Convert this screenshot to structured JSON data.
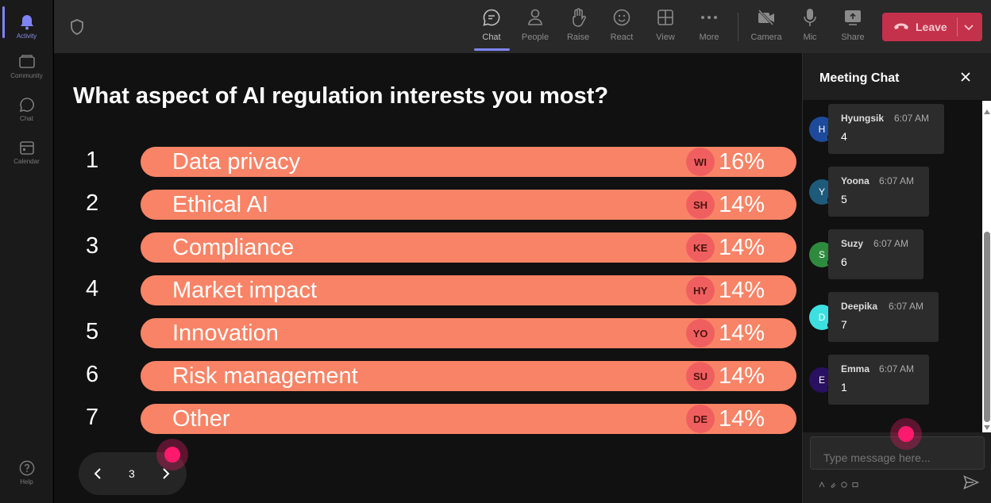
{
  "rail": {
    "items": [
      {
        "label": "Activity",
        "icon": "bell-icon"
      },
      {
        "label": "Community",
        "icon": "community-icon"
      },
      {
        "label": "Chat",
        "icon": "chat-icon"
      },
      {
        "label": "Calendar",
        "icon": "calendar-icon"
      }
    ],
    "help": {
      "label": "Help",
      "icon": "help-icon"
    }
  },
  "toolbar": {
    "buttons": [
      {
        "label": "Chat",
        "icon": "chat-icon"
      },
      {
        "label": "People",
        "icon": "people-icon"
      },
      {
        "label": "Raise",
        "icon": "hand-icon"
      },
      {
        "label": "React",
        "icon": "smiley-icon"
      },
      {
        "label": "View",
        "icon": "grid-icon"
      },
      {
        "label": "More",
        "icon": "more-icon"
      },
      {
        "label": "Camera",
        "icon": "camera-off-icon"
      },
      {
        "label": "Mic",
        "icon": "mic-icon"
      },
      {
        "label": "Share",
        "icon": "share-icon"
      }
    ],
    "leave_label": "Leave"
  },
  "poll": {
    "question": "What aspect of AI regulation interests you most?",
    "options": [
      {
        "num": "1",
        "label": "Data privacy",
        "initials": "WI",
        "percent": "16%"
      },
      {
        "num": "2",
        "label": "Ethical AI",
        "initials": "SH",
        "percent": "14%"
      },
      {
        "num": "3",
        "label": "Compliance",
        "initials": "KE",
        "percent": "14%"
      },
      {
        "num": "4",
        "label": "Market impact",
        "initials": "HY",
        "percent": "14%"
      },
      {
        "num": "5",
        "label": "Innovation",
        "initials": "YO",
        "percent": "14%"
      },
      {
        "num": "6",
        "label": "Risk management",
        "initials": "SU",
        "percent": "14%"
      },
      {
        "num": "7",
        "label": "Other",
        "initials": "DE",
        "percent": "14%"
      }
    ],
    "page": "3"
  },
  "chat": {
    "title": "Meeting Chat",
    "messages": [
      {
        "initial": "H",
        "name": "Hyungsik",
        "time": "6:07 AM",
        "text": "4",
        "color": "#1e4a9c"
      },
      {
        "initial": "Y",
        "name": "Yoona",
        "time": "6:07 AM",
        "text": "5",
        "color": "#1e5a7a"
      },
      {
        "initial": "S",
        "name": "Suzy",
        "time": "6:07 AM",
        "text": "6",
        "color": "#2e8b3e"
      },
      {
        "initial": "D",
        "name": "Deepika",
        "time": "6:07 AM",
        "text": "7",
        "color": "#3de0e0"
      },
      {
        "initial": "E",
        "name": "Emma",
        "time": "6:07 AM",
        "text": "1",
        "color": "#2a1060"
      }
    ],
    "input_placeholder": "Type message here..."
  }
}
